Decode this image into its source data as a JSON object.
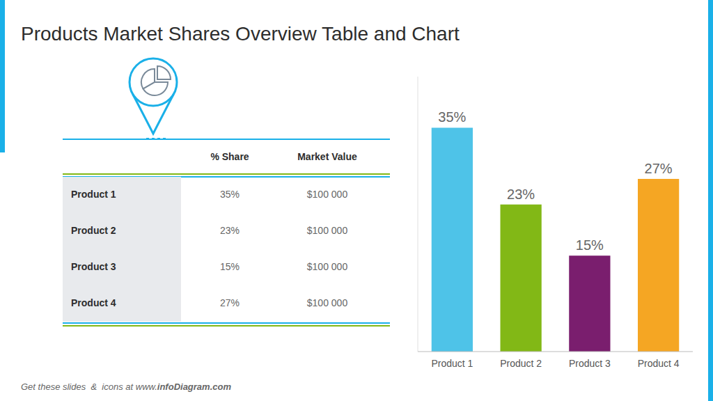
{
  "chart_data": [
    {
      "type": "table",
      "title": "Products Market Shares Overview Table and Chart",
      "categories": [
        "Product 1",
        "Product 2",
        "Product 3",
        "Product 4"
      ],
      "series": [
        {
          "name": "% Share",
          "values": [
            35,
            23,
            15,
            27
          ],
          "value_labels": [
            "35%",
            "23%",
            "15%",
            "27%"
          ]
        },
        {
          "name": "Market Value",
          "values": [
            100000,
            100000,
            100000,
            100000
          ],
          "value_labels": [
            "$100 000",
            "$100 000",
            "$100 000",
            "$100 000"
          ]
        }
      ],
      "annotations": [
        "Get these slides  &  icons at www.",
        "infoDiagram.com"
      ]
    },
    {
      "type": "bar",
      "categories": [
        "Product 1",
        "Product 2",
        "Product 3",
        "Product 4"
      ],
      "values": [
        35,
        23,
        15,
        27
      ],
      "value_labels": [
        "35%",
        "23%",
        "15%",
        "27%"
      ],
      "colors": [
        "#4ec3e8",
        "#82b816",
        "#7a1e6e",
        "#f5a623"
      ],
      "ylim": [
        0,
        43
      ],
      "data_labels": true,
      "tick_labels": "x",
      "grid": false
    }
  ]
}
